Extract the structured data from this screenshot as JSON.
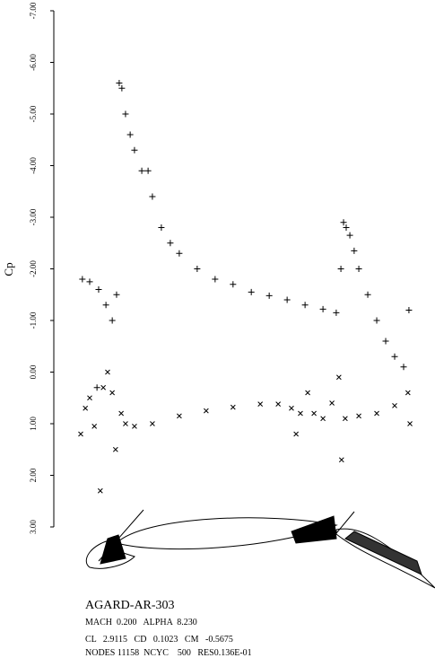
{
  "chart_data": {
    "type": "scatter",
    "y_label": "Cp",
    "ylim": [
      -7,
      3
    ],
    "yticks": [
      {
        "value": -7,
        "label": "-7.00"
      },
      {
        "value": -6,
        "label": "-6.00"
      },
      {
        "value": -5,
        "label": "-5.00"
      },
      {
        "value": -4,
        "label": "-4.00"
      },
      {
        "value": -3,
        "label": "-3.00"
      },
      {
        "value": -2,
        "label": "-2.00"
      },
      {
        "value": -1,
        "label": "-1.00"
      },
      {
        "value": 0,
        "label": "0.00"
      },
      {
        "value": 1,
        "label": "1.00"
      },
      {
        "value": 2,
        "label": "2.00"
      },
      {
        "value": 3,
        "label": "3.00"
      }
    ],
    "xlim": [
      0,
      100
    ],
    "series": [
      {
        "marker": "plus",
        "color": "#000000",
        "x": [
          0.5,
          2.7,
          4.9,
          5.4,
          7.6,
          9.5,
          10.8,
          11.6,
          12.4,
          13.5,
          14.9,
          16.2,
          18.4,
          20.3,
          21.6,
          24.3,
          27,
          29.7,
          35.1,
          40.5,
          45.9,
          51.4,
          56.8,
          62.2,
          67.6,
          73,
          77,
          78.4,
          79.2,
          80,
          81.1,
          82.4,
          83.8,
          86.5,
          89.2,
          91.9,
          94.6,
          97.3,
          98.9
        ],
        "values": [
          -1.8,
          -1.75,
          0.3,
          -1.6,
          -1.3,
          -1.0,
          -1.5,
          -5.6,
          -5.5,
          -5.0,
          -4.6,
          -4.3,
          -3.9,
          -3.9,
          -3.4,
          -2.8,
          -2.5,
          -2.3,
          -2.0,
          -1.8,
          -1.7,
          -1.55,
          -1.48,
          -1.4,
          -1.3,
          -1.22,
          -1.15,
          -2.0,
          -2.9,
          -2.8,
          -2.65,
          -2.35,
          -2.0,
          -1.5,
          -1.0,
          -0.6,
          -0.3,
          -0.1,
          -1.2
        ]
      },
      {
        "marker": "cross",
        "color": "#000000",
        "x": [
          0,
          1.4,
          2.7,
          4.1,
          5.9,
          6.8,
          8.1,
          9.5,
          10.5,
          12.2,
          13.5,
          16.2,
          21.6,
          29.7,
          37.8,
          45.9,
          54.1,
          59.5,
          63.5,
          64.9,
          66.2,
          68.4,
          70.3,
          73,
          75.7,
          77.8,
          78.6,
          79.7,
          83.8,
          89.2,
          94.6,
          98.6,
          99.2
        ],
        "values": [
          1.2,
          0.7,
          0.5,
          1.05,
          2.3,
          0.3,
          0.0,
          0.4,
          1.5,
          0.8,
          1.0,
          1.05,
          1.0,
          0.85,
          0.75,
          0.68,
          0.62,
          0.62,
          0.7,
          1.2,
          0.8,
          0.4,
          0.8,
          0.9,
          0.6,
          0.1,
          1.7,
          0.9,
          0.85,
          0.8,
          0.65,
          0.4,
          1.0
        ]
      }
    ]
  },
  "info": {
    "case": "AGARD-AR-303",
    "line1": "MACH  0.200   ALPHA  8.230",
    "line2": "CL   2.9115   CD   0.1023   CM   -0.5675",
    "line3": "NODES 11158  NCYC    500   RES0.136E-01"
  }
}
